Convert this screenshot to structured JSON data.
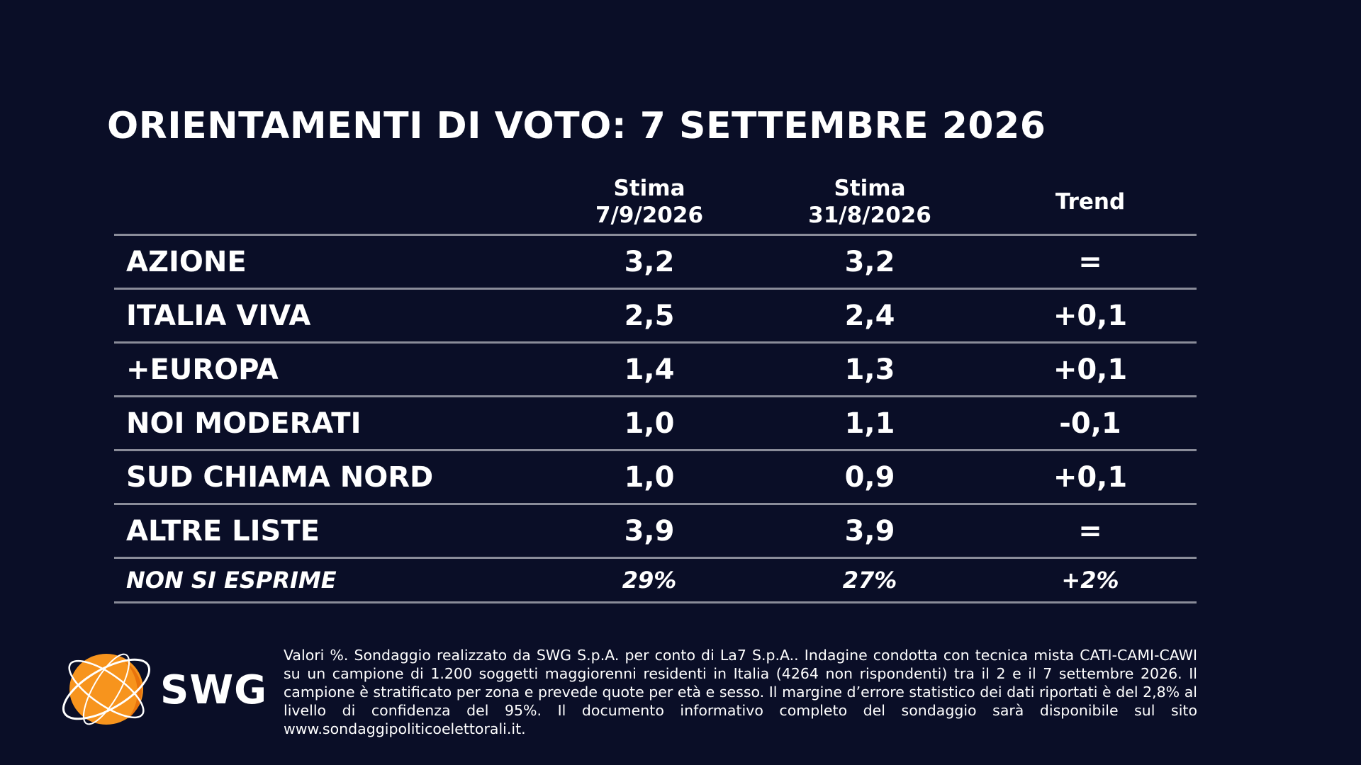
{
  "title": "ORIENTAMENTI DI VOTO: 7 SETTEMBRE 2026",
  "chart_data": {
    "type": "table",
    "columns": [
      {
        "line1": "Stima",
        "line2": "7/9/2026"
      },
      {
        "line1": "Stima",
        "line2": "31/8/2026"
      },
      {
        "line1": "Trend",
        "line2": ""
      }
    ],
    "rows": [
      {
        "name": "AZIONE",
        "est_current": "3,2",
        "est_previous": "3,2",
        "trend": "="
      },
      {
        "name": "ITALIA VIVA",
        "est_current": "2,5",
        "est_previous": "2,4",
        "trend": "+0,1"
      },
      {
        "name": "+EUROPA",
        "est_current": "1,4",
        "est_previous": "1,3",
        "trend": "+0,1"
      },
      {
        "name": "NOI MODERATI",
        "est_current": "1,0",
        "est_previous": "1,1",
        "trend": "-0,1"
      },
      {
        "name": "SUD CHIAMA NORD",
        "est_current": "1,0",
        "est_previous": "0,9",
        "trend": "+0,1"
      },
      {
        "name": "ALTRE LISTE",
        "est_current": "3,9",
        "est_previous": "3,9",
        "trend": "="
      }
    ],
    "non_response": {
      "name": "NON SI ESPRIME",
      "est_current": "29%",
      "est_previous": "27%",
      "trend": "+2%"
    }
  },
  "logo": {
    "text": "SWG",
    "colors": {
      "orange": "#f7941d",
      "orange_dark": "#e8730c",
      "ring": "#ffffff"
    }
  },
  "footnote": "Valori %. Sondaggio realizzato da SWG S.p.A. per conto di La7 S.p.A.. Indagine condotta con tecnica mista CATI-CAMI-CAWI su un campione di 1.200 soggetti maggiorenni residenti in Italia (4264 non rispondenti) tra il 2 e il 7 settembre 2026. Il campione è stratificato per zona e prevede quote per età e sesso. Il margine d’errore statistico dei dati riportati è del 2,8% al livello di confidenza del 95%. Il documento informativo completo del sondaggio sarà disponibile sul sito www.sondaggipoliticoelettorali.it.",
  "colors": {
    "background": "#0a0e27",
    "text": "#ffffff",
    "rule": "#8a8c99"
  }
}
